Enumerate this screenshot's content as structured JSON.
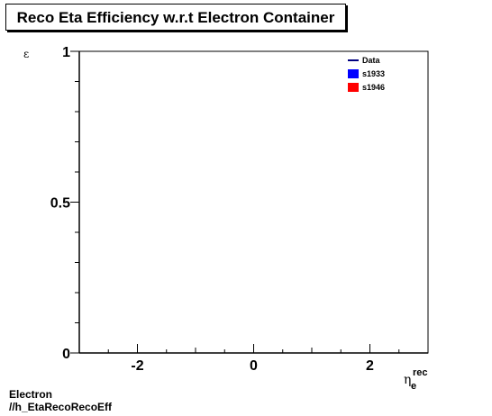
{
  "title": "Reco Eta Efficiency w.r.t Electron Container",
  "ylabel": "ε",
  "xlabel": {
    "main": "η",
    "sub": "e",
    "sup": "rec"
  },
  "footer": {
    "line1": "Electron",
    "line2": "//h_EtaRecoRecoEff"
  },
  "chart_data": {
    "type": "line",
    "title": "Reco Eta Efficiency w.r.t Electron Container",
    "xlim": [
      -3.0,
      3.0
    ],
    "ylim": [
      0,
      1
    ],
    "x_ticks": [
      -2,
      0,
      2
    ],
    "x_tick_labels": [
      "-2",
      "0",
      "2"
    ],
    "y_ticks": [
      0,
      0.5,
      1
    ],
    "y_tick_labels": [
      "0",
      "0.5",
      "1"
    ],
    "grid": false,
    "legend_position": "top-right",
    "series": [
      {
        "name": "Data",
        "color": "#000080",
        "style": "line",
        "values": []
      },
      {
        "name": "s1933",
        "color": "#0000ff",
        "style": "fill",
        "values": []
      },
      {
        "name": "s1946",
        "color": "#ff0000",
        "style": "fill",
        "values": []
      }
    ]
  }
}
